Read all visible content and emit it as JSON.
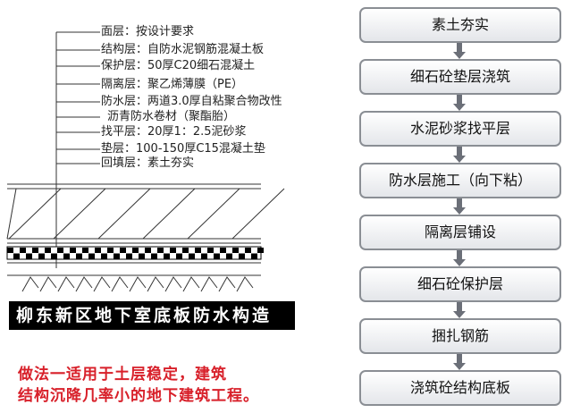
{
  "layers": [
    "面层：按设计要求",
    "结构层：自防水泥钢筋混凝土板",
    "保护层：50厚C20细石混凝土",
    "隔离层：聚乙烯薄膜（PE）",
    "防水层：两道3.0厚自粘聚合物改性",
    "沥青防水卷材（聚酯胎）",
    "找平层：20厚1：2.5泥砂浆",
    "垫层：100-150厚C15混凝土垫",
    "回填层：素土夯实"
  ],
  "title": "柳东新区地下室底板防水构造",
  "note": [
    "做法一适用于土层稳定，建筑",
    "结构沉降几率小的地下建筑工程。"
  ],
  "steps": [
    "素土夯实",
    "细石砼垫层浇筑",
    "水泥砂浆找平层",
    "防水层施工（向下粘）",
    "隔离层铺设",
    "细石砼保护层",
    "捆扎钢筋",
    "浇筑砼结构底板"
  ],
  "colors": {
    "note": "#d8202a",
    "box_border": "#8a8e94",
    "arrow": "#6b6f78"
  }
}
